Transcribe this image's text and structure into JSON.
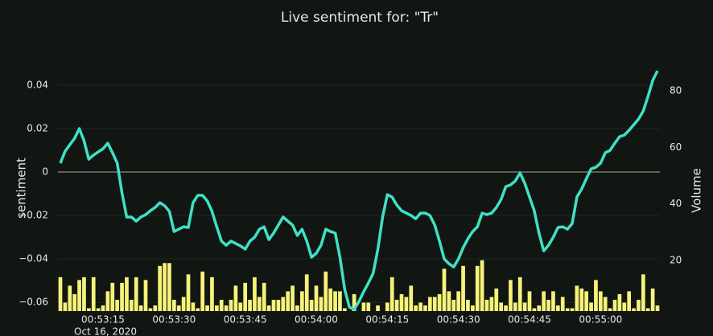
{
  "chart_data": {
    "type": "line_bar",
    "title": "Live sentiment for: \"Tr\"",
    "y_label": "sentiment",
    "y2_label": "Volume",
    "x_date": "Oct 16, 2020",
    "x": [
      "00:53:06",
      "00:53:07",
      "00:53:08",
      "00:53:09",
      "00:53:10",
      "00:53:11",
      "00:53:12",
      "00:53:13",
      "00:53:14",
      "00:53:15",
      "00:53:16",
      "00:53:17",
      "00:53:18",
      "00:53:19",
      "00:53:20",
      "00:53:21",
      "00:53:22",
      "00:53:23",
      "00:53:24",
      "00:53:25",
      "00:53:26",
      "00:53:27",
      "00:53:28",
      "00:53:29",
      "00:53:30",
      "00:53:31",
      "00:53:32",
      "00:53:33",
      "00:53:34",
      "00:53:35",
      "00:53:36",
      "00:53:37",
      "00:53:38",
      "00:53:39",
      "00:53:40",
      "00:53:41",
      "00:53:42",
      "00:53:43",
      "00:53:44",
      "00:53:45",
      "00:53:46",
      "00:53:47",
      "00:53:48",
      "00:53:49",
      "00:53:50",
      "00:53:51",
      "00:53:52",
      "00:53:53",
      "00:53:54",
      "00:53:55",
      "00:53:56",
      "00:53:57",
      "00:53:58",
      "00:53:59",
      "00:54:00",
      "00:54:01",
      "00:54:02",
      "00:54:03",
      "00:54:04",
      "00:54:05",
      "00:54:06",
      "00:54:07",
      "00:54:08",
      "00:54:09",
      "00:54:10",
      "00:54:11",
      "00:54:12",
      "00:54:13",
      "00:54:14",
      "00:54:15",
      "00:54:16",
      "00:54:17",
      "00:54:18",
      "00:54:19",
      "00:54:20",
      "00:54:21",
      "00:54:22",
      "00:54:23",
      "00:54:24",
      "00:54:25",
      "00:54:26",
      "00:54:27",
      "00:54:28",
      "00:54:29",
      "00:54:30",
      "00:54:31",
      "00:54:32",
      "00:54:33",
      "00:54:34",
      "00:54:35",
      "00:54:36",
      "00:54:37",
      "00:54:38",
      "00:54:39",
      "00:54:40",
      "00:54:41",
      "00:54:42",
      "00:54:43",
      "00:54:44",
      "00:54:45",
      "00:54:46",
      "00:54:47",
      "00:54:48",
      "00:54:49",
      "00:54:50",
      "00:54:51",
      "00:54:52",
      "00:54:53",
      "00:54:54",
      "00:54:55",
      "00:54:56",
      "00:54:57",
      "00:54:58",
      "00:54:59",
      "00:55:00",
      "00:55:01",
      "00:55:02",
      "00:55:03",
      "00:55:04",
      "00:55:05",
      "00:55:06",
      "00:55:07",
      "00:55:08",
      "00:55:09",
      "00:55:10",
      "00:55:11",
      "00:55:12"
    ],
    "series": [
      {
        "name": "sentiment",
        "type": "line",
        "color": "#3fe0c5",
        "values": [
          0.0041,
          0.0096,
          0.0126,
          0.0155,
          0.02,
          0.0144,
          0.0059,
          0.0078,
          0.0093,
          0.0107,
          0.0133,
          0.0089,
          0.0041,
          -0.0096,
          -0.0207,
          -0.0207,
          -0.0226,
          -0.0207,
          -0.0196,
          -0.0178,
          -0.0163,
          -0.0141,
          -0.0155,
          -0.0181,
          -0.0274,
          -0.0263,
          -0.0252,
          -0.0255,
          -0.0141,
          -0.0107,
          -0.0107,
          -0.0133,
          -0.0181,
          -0.0252,
          -0.0318,
          -0.0337,
          -0.0318,
          -0.0329,
          -0.034,
          -0.0355,
          -0.0318,
          -0.03,
          -0.0263,
          -0.0252,
          -0.0311,
          -0.0281,
          -0.0244,
          -0.0207,
          -0.0226,
          -0.0244,
          -0.0292,
          -0.0263,
          -0.0318,
          -0.0392,
          -0.0374,
          -0.0337,
          -0.0263,
          -0.0274,
          -0.0281,
          -0.0392,
          -0.054,
          -0.0622,
          -0.0633,
          -0.0596,
          -0.0551,
          -0.0511,
          -0.0466,
          -0.0355,
          -0.0207,
          -0.0104,
          -0.0115,
          -0.0152,
          -0.0178,
          -0.0189,
          -0.02,
          -0.0215,
          -0.0189,
          -0.0189,
          -0.02,
          -0.0244,
          -0.0318,
          -0.04,
          -0.0422,
          -0.0437,
          -0.04,
          -0.0348,
          -0.0307,
          -0.0274,
          -0.0252,
          -0.0189,
          -0.0196,
          -0.0189,
          -0.0163,
          -0.0126,
          -0.0067,
          -0.0059,
          -0.0041,
          -0.0004,
          -0.0052,
          -0.0115,
          -0.0178,
          -0.0281,
          -0.0363,
          -0.0337,
          -0.03,
          -0.0255,
          -0.0252,
          -0.0263,
          -0.0237,
          -0.0115,
          -0.0078,
          -0.003,
          0.0015,
          0.0022,
          0.0041,
          0.0089,
          0.01,
          0.0133,
          0.0163,
          0.017,
          0.0192,
          0.0218,
          0.0244,
          0.0281,
          0.0348,
          0.0422,
          0.0466
        ]
      },
      {
        "name": "Volume",
        "type": "bar",
        "axis": "y2",
        "color": "#f7f27a",
        "values": [
          14,
          5,
          11,
          8,
          13,
          14,
          3,
          14,
          3,
          4,
          9,
          12,
          6,
          12,
          14,
          6,
          14,
          4,
          13,
          3,
          4,
          18,
          19,
          19,
          6,
          4,
          7,
          15,
          5,
          3,
          16,
          4,
          14,
          4,
          6,
          4,
          6,
          11,
          5,
          12,
          6,
          14,
          7,
          12,
          4,
          6,
          6,
          7,
          9,
          11,
          4,
          9,
          15,
          6,
          11,
          7,
          16,
          10,
          9,
          9,
          3,
          2,
          8,
          2,
          5,
          5,
          2,
          4,
          2,
          5,
          14,
          6,
          8,
          7,
          11,
          4,
          5,
          4,
          7,
          7,
          8,
          17,
          9,
          6,
          9,
          18,
          6,
          4,
          18,
          20,
          6,
          7,
          10,
          5,
          4,
          13,
          5,
          14,
          5,
          9,
          3,
          4,
          9,
          6,
          9,
          4,
          7,
          3,
          3,
          11,
          10,
          9,
          5,
          13,
          9,
          7,
          3,
          6,
          8,
          5,
          9,
          3,
          6,
          15,
          3,
          10,
          4
        ]
      }
    ],
    "xlim": [
      "00:53:06",
      "00:55:12"
    ],
    "xticks": [
      "00:53:15",
      "00:53:30",
      "00:53:45",
      "00:54:00",
      "00:54:15",
      "00:54:30",
      "00:54:45",
      "00:55:00"
    ],
    "ylim": [
      -0.064,
      0.0496
    ],
    "yticks": [
      {
        "value": -0.06,
        "label": "−0.06"
      },
      {
        "value": -0.04,
        "label": "−0.04"
      },
      {
        "value": -0.02,
        "label": "−0.02"
      },
      0,
      0.02,
      0.04
    ],
    "y2lim": [
      2,
      89.4
    ],
    "y2ticks": [
      20,
      40,
      60,
      80
    ],
    "grid": true
  }
}
